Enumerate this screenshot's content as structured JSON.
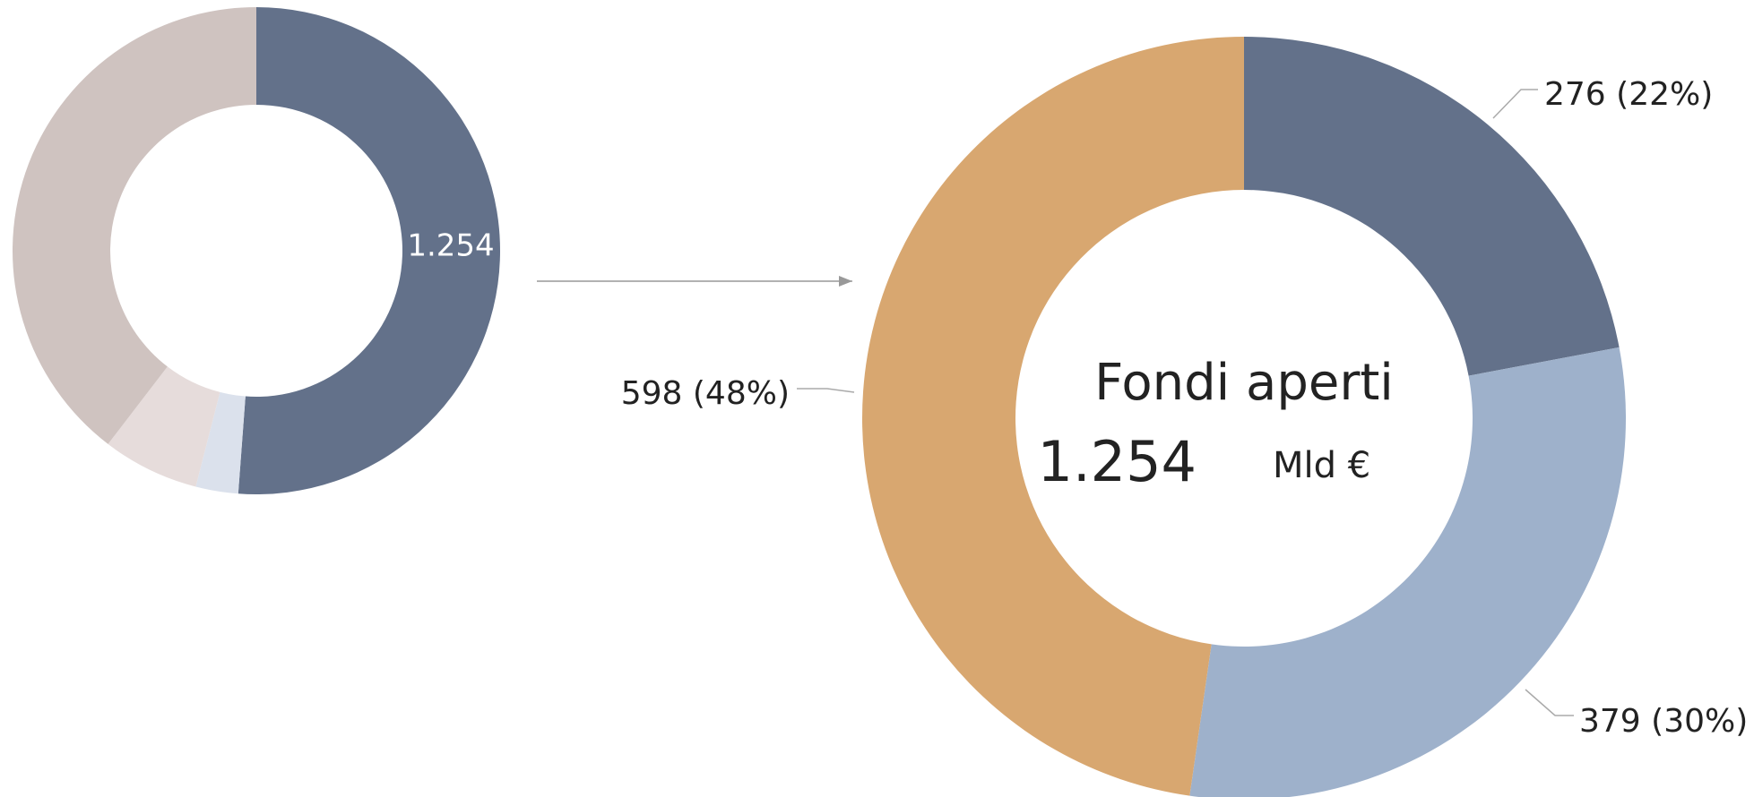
{
  "chart_data": [
    {
      "type": "pie",
      "values": [
        1254,
        69,
        157,
        970
      ],
      "value_labels": [
        "1.254",
        null,
        null,
        null
      ],
      "colors": [
        "#63718a",
        "#dbe1ec",
        "#e6dcdb",
        "#cfc3c0"
      ]
    },
    {
      "type": "pie",
      "title": "Fondi aperti",
      "total": {
        "value": 1254,
        "label": "1.254"
      },
      "unit": "Mld €",
      "values": [
        276,
        379,
        598
      ],
      "value_labels": [
        "276 (22%)",
        "379 (30%)",
        "598 (48%)"
      ],
      "colors": [
        "#63718a",
        "#9eb1cb",
        "#d8a770"
      ]
    }
  ]
}
